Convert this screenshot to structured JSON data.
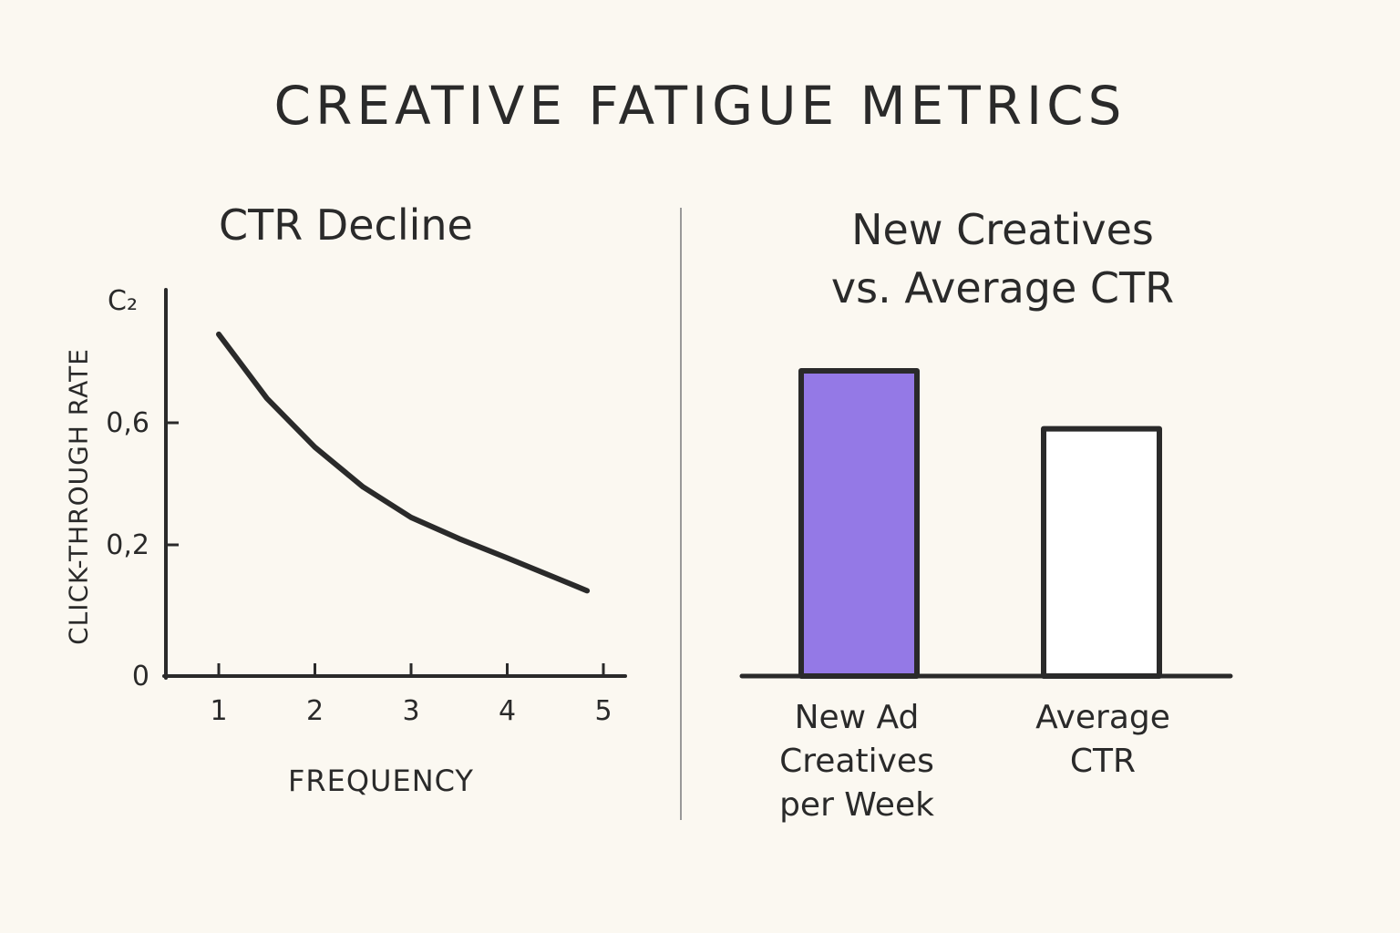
{
  "title": "CREATIVE FATIGUE METRICS",
  "colors": {
    "background": "#fbf8f1",
    "ink": "#2a2a2a",
    "accent": "#9479e6",
    "divider": "#999999"
  },
  "chart_data": [
    {
      "type": "line",
      "title": "CTR Decline",
      "xlabel": "FREQUENCY",
      "ylabel": "CLICK-THROUGH RATE",
      "y_top_label": "C₂",
      "x_ticks": [
        "1",
        "2",
        "3",
        "4",
        "5"
      ],
      "y_ticks": [
        "0",
        "0,2",
        "0,6"
      ],
      "y_tick_values": [
        0,
        0.2,
        0.6
      ],
      "grid": false,
      "series": [
        {
          "x": [
            1,
            1.5,
            2,
            2.5,
            3,
            3.5,
            4,
            4.5,
            4.83
          ],
          "y": [
            0.89,
            0.68,
            0.52,
            0.39,
            0.29,
            0.22,
            0.18,
            0.15,
            0.13
          ]
        }
      ]
    },
    {
      "type": "bar",
      "title": "New Creatives\nvs. Average CTR",
      "categories": [
        "New Ad\nCreatives\nper Week",
        "Average\nCTR"
      ],
      "values": [
        100,
        81
      ],
      "value_scale": "relative (no axis printed)",
      "bar_styles": [
        "filled-accent",
        "outline"
      ]
    }
  ]
}
